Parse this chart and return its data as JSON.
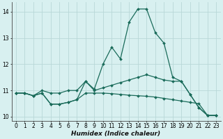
{
  "xlabel": "Humidex (Indice chaleur)",
  "background_color": "#d8f0f0",
  "grid_color": "#b8d8d8",
  "line_color": "#1a6b5a",
  "xlim": [
    -0.5,
    23.5
  ],
  "ylim": [
    9.85,
    14.35
  ],
  "x_ticks": [
    0,
    1,
    2,
    3,
    4,
    5,
    6,
    7,
    8,
    9,
    10,
    11,
    12,
    13,
    14,
    15,
    16,
    17,
    18,
    19,
    20,
    21,
    22,
    23
  ],
  "y_ticks": [
    10,
    11,
    12,
    13,
    14
  ],
  "lines": [
    {
      "x": [
        0,
        1,
        2,
        3,
        4,
        5,
        6,
        7,
        8,
        9,
        10,
        11,
        12,
        13,
        14,
        15,
        16,
        17,
        18,
        19,
        20,
        21,
        22,
        23
      ],
      "y": [
        10.9,
        10.9,
        10.8,
        10.9,
        10.48,
        10.48,
        10.55,
        10.65,
        10.9,
        10.9,
        10.9,
        10.88,
        10.85,
        10.82,
        10.8,
        10.78,
        10.75,
        10.7,
        10.65,
        10.6,
        10.55,
        10.5,
        10.05,
        10.05
      ],
      "marker": "D",
      "markersize": 2.0,
      "linewidth": 0.9
    },
    {
      "x": [
        0,
        1,
        2,
        3,
        4,
        5,
        6,
        7,
        8,
        9,
        10,
        11,
        12,
        13,
        14,
        15,
        16,
        17,
        18,
        19,
        20,
        21,
        22,
        23
      ],
      "y": [
        10.9,
        10.9,
        10.8,
        10.9,
        10.48,
        10.48,
        10.55,
        10.65,
        11.35,
        11.05,
        12.0,
        12.65,
        12.2,
        13.6,
        14.1,
        14.1,
        13.2,
        12.8,
        11.5,
        11.35,
        10.85,
        10.35,
        10.05,
        10.05
      ],
      "marker": "D",
      "markersize": 2.0,
      "linewidth": 0.9
    },
    {
      "x": [
        0,
        1,
        2,
        3,
        4,
        5,
        6,
        7,
        8,
        9,
        10,
        11,
        12,
        13,
        14,
        15,
        16,
        17,
        18,
        19,
        20,
        21,
        22,
        23
      ],
      "y": [
        10.9,
        10.9,
        10.8,
        11.0,
        10.9,
        10.9,
        11.0,
        11.0,
        11.35,
        11.0,
        11.1,
        11.2,
        11.3,
        11.4,
        11.5,
        11.6,
        11.5,
        11.4,
        11.35,
        11.35,
        10.85,
        10.35,
        10.05,
        10.05
      ],
      "marker": "D",
      "markersize": 2.0,
      "linewidth": 0.9
    }
  ]
}
